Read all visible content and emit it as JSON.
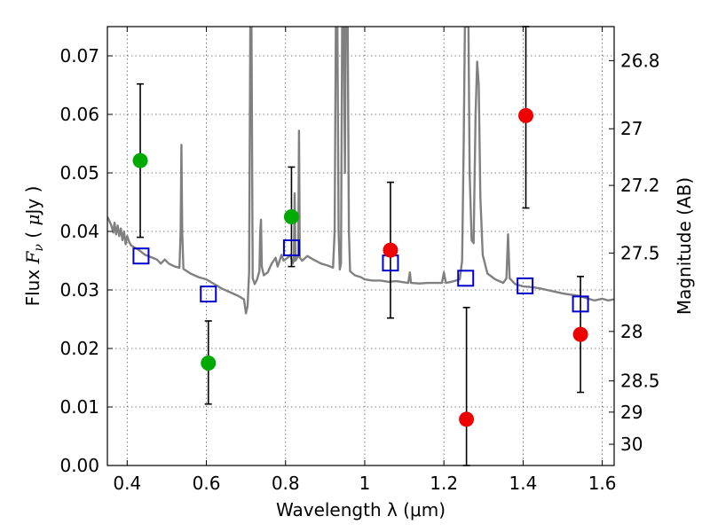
{
  "chart_data": {
    "type": "scatter",
    "xlabel": "Wavelength  λ (μm)",
    "ylabel": "Flux  F_ν  ( μJy )",
    "ylabel_parts": {
      "pre": "Flux  ",
      "sym": "F",
      "sub": "ν",
      "post": "  ( ",
      "mu": "μ",
      "unit": "Jy )"
    },
    "y2label": "Magnitude (AB)",
    "xlim": [
      0.35,
      1.63
    ],
    "ylim": [
      0.0,
      0.075
    ],
    "grid": true,
    "x_ticks": [
      {
        "v": 0.4,
        "label": "0.4"
      },
      {
        "v": 0.6,
        "label": "0.6"
      },
      {
        "v": 0.8,
        "label": "0.8"
      },
      {
        "v": 1.0,
        "label": "1"
      },
      {
        "v": 1.2,
        "label": "1.2"
      },
      {
        "v": 1.4,
        "label": "1.4"
      },
      {
        "v": 1.6,
        "label": "1.6"
      }
    ],
    "y_ticks": [
      {
        "v": 0.0,
        "label": "0.00"
      },
      {
        "v": 0.01,
        "label": "0.01"
      },
      {
        "v": 0.02,
        "label": "0.02"
      },
      {
        "v": 0.03,
        "label": "0.03"
      },
      {
        "v": 0.04,
        "label": "0.04"
      },
      {
        "v": 0.05,
        "label": "0.05"
      },
      {
        "v": 0.06,
        "label": "0.06"
      },
      {
        "v": 0.07,
        "label": "0.07"
      }
    ],
    "y2_ticks": [
      {
        "mag": 26.8,
        "label": "26.8"
      },
      {
        "mag": 27.0,
        "label": "27"
      },
      {
        "mag": 27.2,
        "label": "27.2"
      },
      {
        "mag": 27.5,
        "label": "27.5"
      },
      {
        "mag": 28.0,
        "label": "28"
      },
      {
        "mag": 28.5,
        "label": "28.5"
      },
      {
        "mag": 29.0,
        "label": "29"
      },
      {
        "mag": 30.0,
        "label": "30"
      }
    ],
    "spectrum": {
      "color": "#808080",
      "points": [
        [
          0.35,
          0.0425
        ],
        [
          0.355,
          0.0418
        ],
        [
          0.36,
          0.041
        ],
        [
          0.365,
          0.0398
        ],
        [
          0.368,
          0.0415
        ],
        [
          0.372,
          0.0395
        ],
        [
          0.376,
          0.041
        ],
        [
          0.38,
          0.0392
        ],
        [
          0.384,
          0.0405
        ],
        [
          0.388,
          0.0385
        ],
        [
          0.392,
          0.04
        ],
        [
          0.396,
          0.0378
        ],
        [
          0.4,
          0.0392
        ],
        [
          0.405,
          0.0382
        ],
        [
          0.41,
          0.0376
        ],
        [
          0.42,
          0.0372
        ],
        [
          0.43,
          0.0368
        ],
        [
          0.445,
          0.036
        ],
        [
          0.46,
          0.0356
        ],
        [
          0.475,
          0.0352
        ],
        [
          0.485,
          0.0345
        ],
        [
          0.495,
          0.0352
        ],
        [
          0.505,
          0.0345
        ],
        [
          0.52,
          0.034
        ],
        [
          0.532,
          0.0338
        ],
        [
          0.535,
          0.04
        ],
        [
          0.537,
          0.0548
        ],
        [
          0.539,
          0.04
        ],
        [
          0.542,
          0.0336
        ],
        [
          0.56,
          0.0328
        ],
        [
          0.58,
          0.0322
        ],
        [
          0.6,
          0.0318
        ],
        [
          0.62,
          0.031
        ],
        [
          0.64,
          0.0302
        ],
        [
          0.66,
          0.0296
        ],
        [
          0.68,
          0.029
        ],
        [
          0.695,
          0.0284
        ],
        [
          0.7,
          0.026
        ],
        [
          0.704,
          0.0272
        ],
        [
          0.708,
          0.033
        ],
        [
          0.711,
          0.075
        ],
        [
          0.714,
          0.075
        ],
        [
          0.717,
          0.032
        ],
        [
          0.722,
          0.031
        ],
        [
          0.728,
          0.0318
        ],
        [
          0.734,
          0.0332
        ],
        [
          0.736,
          0.04
        ],
        [
          0.738,
          0.042
        ],
        [
          0.74,
          0.034
        ],
        [
          0.745,
          0.0325
        ],
        [
          0.755,
          0.033
        ],
        [
          0.765,
          0.0345
        ],
        [
          0.77,
          0.035
        ],
        [
          0.775,
          0.0355
        ],
        [
          0.78,
          0.034
        ],
        [
          0.786,
          0.0352
        ],
        [
          0.79,
          0.036
        ],
        [
          0.795,
          0.035
        ],
        [
          0.805,
          0.0355
        ],
        [
          0.812,
          0.036
        ],
        [
          0.818,
          0.0345
        ],
        [
          0.821,
          0.035
        ],
        [
          0.823,
          0.0465
        ],
        [
          0.825,
          0.035
        ],
        [
          0.832,
          0.0358
        ],
        [
          0.834,
          0.0572
        ],
        [
          0.836,
          0.0355
        ],
        [
          0.842,
          0.035
        ],
        [
          0.855,
          0.0358
        ],
        [
          0.87,
          0.0352
        ],
        [
          0.89,
          0.0345
        ],
        [
          0.905,
          0.0342
        ],
        [
          0.92,
          0.0338
        ],
        [
          0.924,
          0.04
        ],
        [
          0.927,
          0.075
        ],
        [
          0.931,
          0.075
        ],
        [
          0.934,
          0.04
        ],
        [
          0.937,
          0.0335
        ],
        [
          0.94,
          0.0345
        ],
        [
          0.943,
          0.075
        ],
        [
          0.947,
          0.075
        ],
        [
          0.95,
          0.05
        ],
        [
          0.952,
          0.075
        ],
        [
          0.957,
          0.075
        ],
        [
          0.96,
          0.04
        ],
        [
          0.963,
          0.0332
        ],
        [
          0.975,
          0.0325
        ],
        [
          0.99,
          0.0322
        ],
        [
          1.0,
          0.0318
        ],
        [
          1.02,
          0.0316
        ],
        [
          1.04,
          0.0316
        ],
        [
          1.06,
          0.0314
        ],
        [
          1.08,
          0.0315
        ],
        [
          1.1,
          0.0313
        ],
        [
          1.11,
          0.0312
        ],
        [
          1.114,
          0.033
        ],
        [
          1.117,
          0.0312
        ],
        [
          1.14,
          0.0311
        ],
        [
          1.16,
          0.0312
        ],
        [
          1.18,
          0.0312
        ],
        [
          1.195,
          0.0312
        ],
        [
          1.2,
          0.033
        ],
        [
          1.205,
          0.0312
        ],
        [
          1.22,
          0.0314
        ],
        [
          1.24,
          0.0318
        ],
        [
          1.246,
          0.035
        ],
        [
          1.25,
          0.055
        ],
        [
          1.253,
          0.075
        ],
        [
          1.262,
          0.075
        ],
        [
          1.265,
          0.05
        ],
        [
          1.27,
          0.0385
        ],
        [
          1.275,
          0.038
        ],
        [
          1.28,
          0.06
        ],
        [
          1.284,
          0.069
        ],
        [
          1.288,
          0.065
        ],
        [
          1.292,
          0.046
        ],
        [
          1.298,
          0.036
        ],
        [
          1.31,
          0.0328
        ],
        [
          1.33,
          0.0318
        ],
        [
          1.35,
          0.0312
        ],
        [
          1.358,
          0.032
        ],
        [
          1.362,
          0.0395
        ],
        [
          1.366,
          0.032
        ],
        [
          1.38,
          0.031
        ],
        [
          1.4,
          0.0306
        ],
        [
          1.42,
          0.0305
        ],
        [
          1.44,
          0.0303
        ],
        [
          1.46,
          0.03
        ],
        [
          1.48,
          0.0297
        ],
        [
          1.5,
          0.0294
        ],
        [
          1.52,
          0.0292
        ],
        [
          1.54,
          0.029
        ],
        [
          1.56,
          0.0286
        ],
        [
          1.58,
          0.0282
        ],
        [
          1.6,
          0.0285
        ],
        [
          1.615,
          0.0282
        ],
        [
          1.63,
          0.0284
        ]
      ]
    },
    "model_points": {
      "color": "#0000cc",
      "points": [
        [
          0.435,
          0.0358
        ],
        [
          0.605,
          0.0293
        ],
        [
          0.815,
          0.0372
        ],
        [
          1.065,
          0.0346
        ],
        [
          1.255,
          0.032
        ],
        [
          1.405,
          0.0307
        ],
        [
          1.545,
          0.0276
        ]
      ]
    },
    "detections": {
      "color": "#00aa00",
      "points": [
        {
          "x": 0.433,
          "y": 0.0521,
          "lo": 0.039,
          "hi": 0.0652
        },
        {
          "x": 0.605,
          "y": 0.0175,
          "lo": 0.0105,
          "hi": 0.0247
        },
        {
          "x": 0.815,
          "y": 0.0425,
          "lo": 0.034,
          "hi": 0.051
        }
      ]
    },
    "other_points": {
      "color": "#ee0000",
      "points": [
        {
          "x": 1.065,
          "y": 0.0368,
          "lo": 0.0252,
          "hi": 0.0484
        },
        {
          "x": 1.257,
          "y": 0.0079,
          "lo": 0.0,
          "hi": 0.027
        },
        {
          "x": 1.407,
          "y": 0.0598,
          "lo": 0.044,
          "hi": 0.075
        },
        {
          "x": 1.545,
          "y": 0.0224,
          "lo": 0.0125,
          "hi": 0.0323
        }
      ]
    }
  }
}
